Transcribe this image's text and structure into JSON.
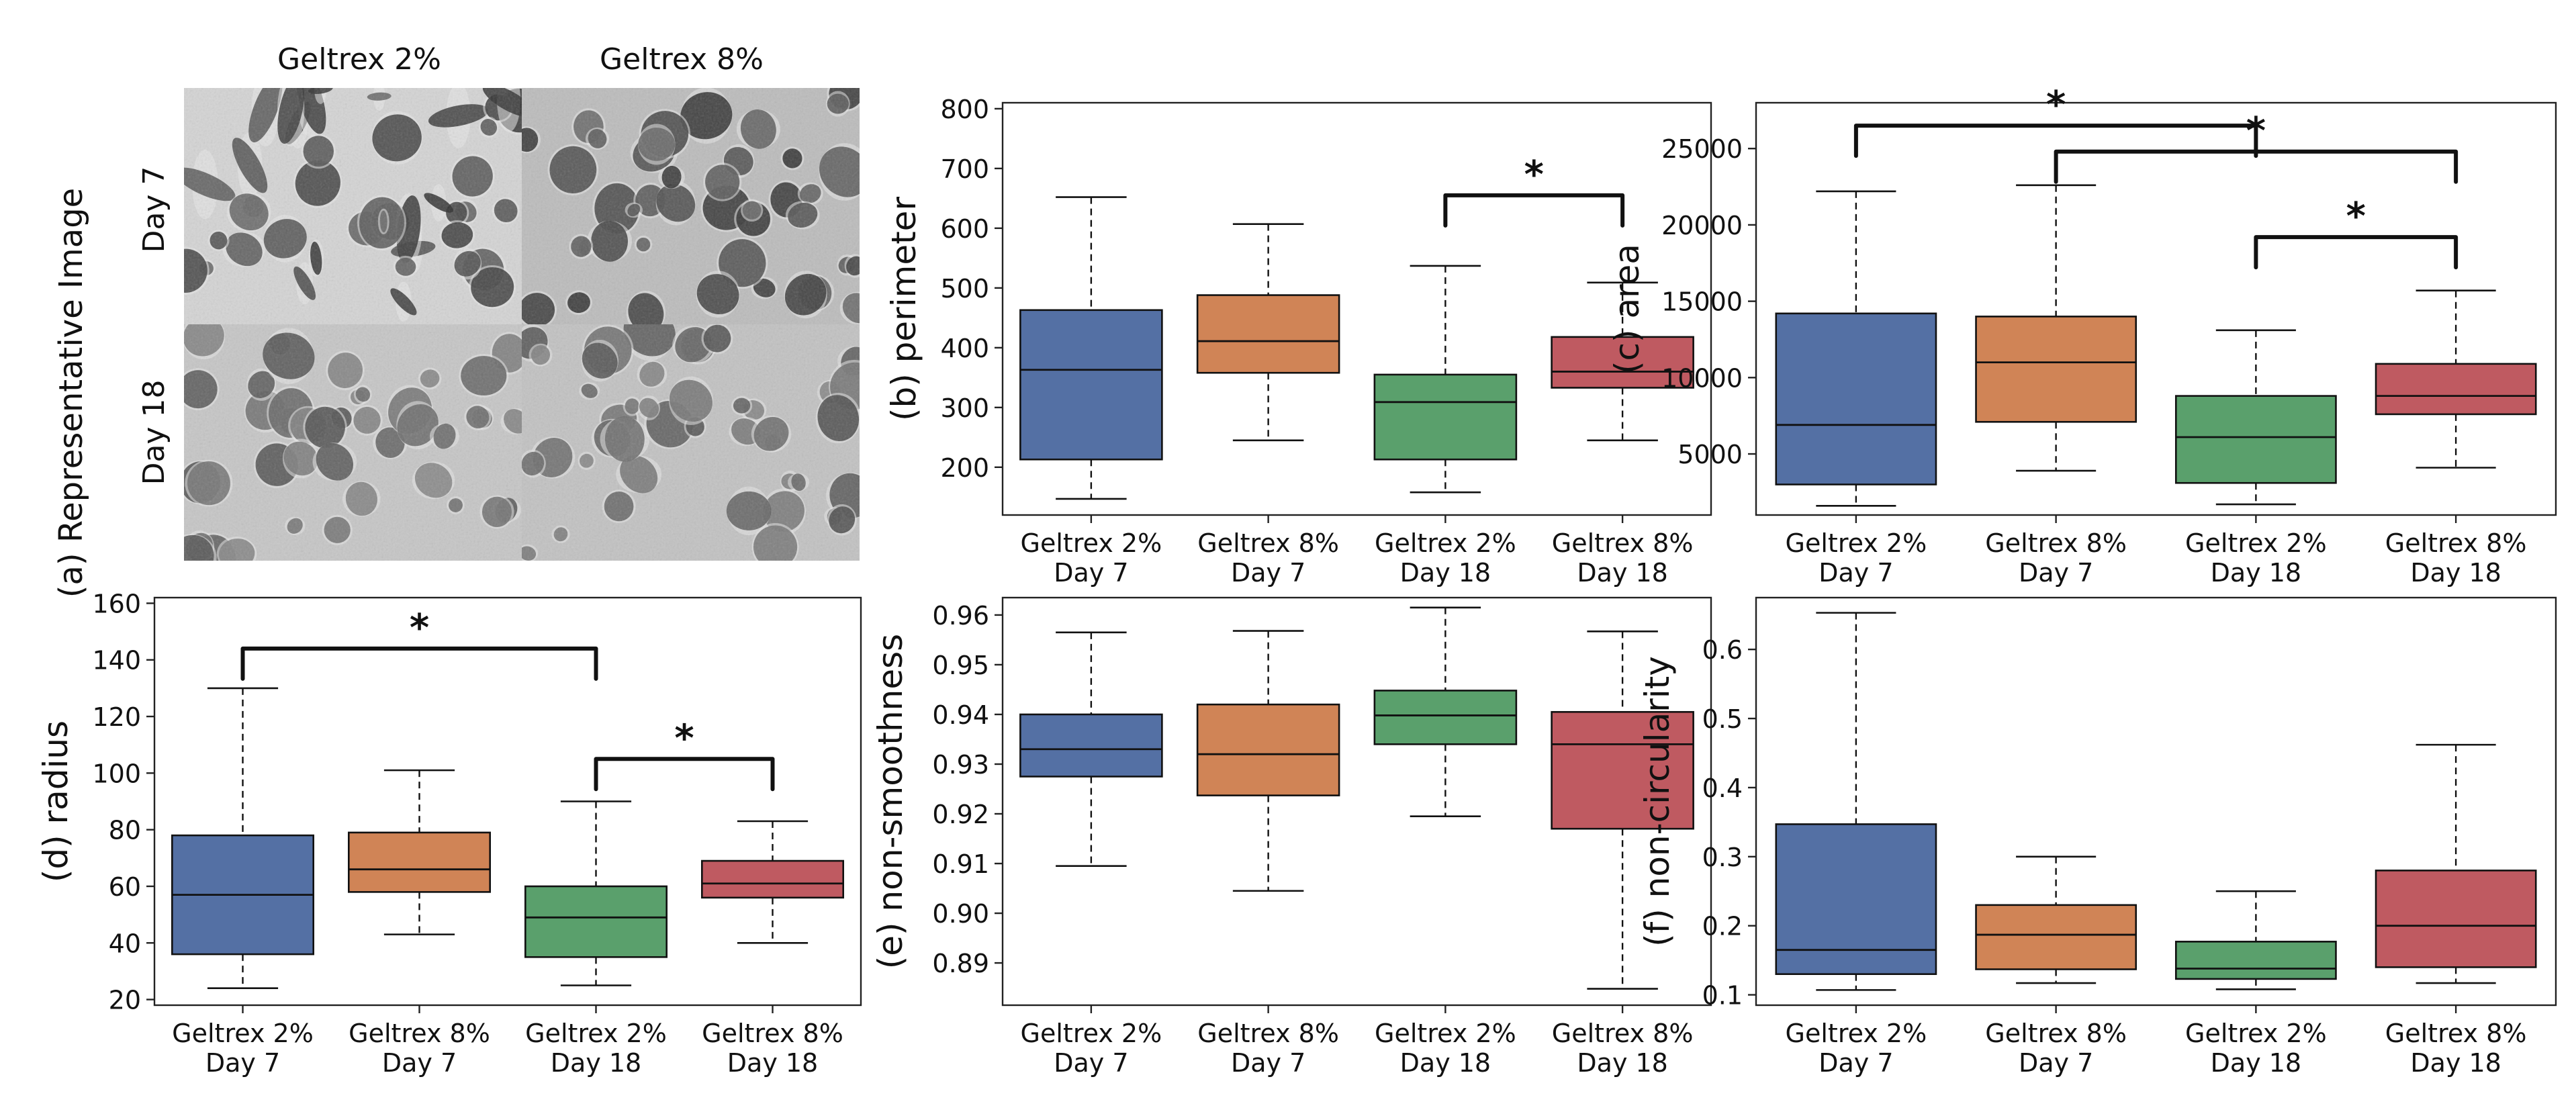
{
  "colors": {
    "blue": "#5470a4",
    "orange": "#d08456",
    "green": "#5aa06c",
    "red": "#bf5a61"
  },
  "panel_a": {
    "ylabel": "(a) Representative Image",
    "col_labels": [
      "Geltrex 2%",
      "Geltrex 8%"
    ],
    "row_labels": [
      "Day 7",
      "Day 18"
    ]
  },
  "chart_data": [
    {
      "id": "b",
      "type": "box",
      "ylabel": "(b) perimeter",
      "categories": [
        "Geltrex 2%\nDay 7",
        "Geltrex 8%\nDay 7",
        "Geltrex 2%\nDay 18",
        "Geltrex 8%\nDay 18"
      ],
      "ylim": [
        120,
        810
      ],
      "yticks": [
        200,
        300,
        400,
        500,
        600,
        700,
        800
      ],
      "boxes": [
        {
          "min": 147,
          "q1": 213,
          "median": 363,
          "q3": 463,
          "max": 652
        },
        {
          "min": 245,
          "q1": 358,
          "median": 411,
          "q3": 488,
          "max": 607
        },
        {
          "min": 158,
          "q1": 213,
          "median": 309,
          "q3": 355,
          "max": 537
        },
        {
          "min": 245,
          "q1": 333,
          "median": 360,
          "q3": 418,
          "max": 509
        }
      ],
      "significance": [
        {
          "from": 2,
          "to": 3,
          "y": 655,
          "label": "*"
        }
      ]
    },
    {
      "id": "c",
      "type": "box",
      "ylabel": "(c) area",
      "categories": [
        "Geltrex 2%\nDay 7",
        "Geltrex 8%\nDay 7",
        "Geltrex 2%\nDay 18",
        "Geltrex 8%\nDay 18"
      ],
      "ylim": [
        1000,
        28000
      ],
      "yticks": [
        5000,
        10000,
        15000,
        20000,
        25000
      ],
      "boxes": [
        {
          "min": 1600,
          "q1": 3000,
          "median": 6900,
          "q3": 14200,
          "max": 22200
        },
        {
          "min": 3900,
          "q1": 7100,
          "median": 11000,
          "q3": 14000,
          "max": 22600
        },
        {
          "min": 1700,
          "q1": 3100,
          "median": 6100,
          "q3": 8800,
          "max": 13100
        },
        {
          "min": 4100,
          "q1": 7600,
          "median": 8800,
          "q3": 10900,
          "max": 15700
        }
      ],
      "significance": [
        {
          "from": 0,
          "to": 2,
          "y": 26500,
          "label": "*"
        },
        {
          "from": 1,
          "to": 3,
          "y": 24800,
          "label": "*"
        },
        {
          "from": 2,
          "to": 3,
          "y": 19200,
          "label": "*"
        }
      ]
    },
    {
      "id": "d",
      "type": "box",
      "ylabel": "(d) radius",
      "categories": [
        "Geltrex 2%\nDay 7",
        "Geltrex 8%\nDay 7",
        "Geltrex 2%\nDay 18",
        "Geltrex 8%\nDay 18"
      ],
      "ylim": [
        18,
        162
      ],
      "yticks": [
        20,
        40,
        60,
        80,
        100,
        120,
        140,
        160
      ],
      "boxes": [
        {
          "min": 24,
          "q1": 36,
          "median": 57,
          "q3": 78,
          "max": 130
        },
        {
          "min": 43,
          "q1": 58,
          "median": 66,
          "q3": 79,
          "max": 101
        },
        {
          "min": 25,
          "q1": 35,
          "median": 49,
          "q3": 60,
          "max": 90
        },
        {
          "min": 40,
          "q1": 56,
          "median": 61,
          "q3": 69,
          "max": 83
        }
      ],
      "significance": [
        {
          "from": 0,
          "to": 2,
          "y": 144,
          "label": "*"
        },
        {
          "from": 2,
          "to": 3,
          "y": 105,
          "label": "*"
        }
      ]
    },
    {
      "id": "e",
      "type": "box",
      "ylabel": "(e) non-smoothness",
      "categories": [
        "Geltrex 2%\nDay 7",
        "Geltrex 8%\nDay 7",
        "Geltrex 2%\nDay 18",
        "Geltrex 8%\nDay 18"
      ],
      "ylim": [
        0.8815,
        0.9635
      ],
      "yticks": [
        0.89,
        0.9,
        0.91,
        0.92,
        0.93,
        0.94,
        0.95,
        0.96
      ],
      "tick_decimals": 2,
      "boxes": [
        {
          "min": 0.9095,
          "q1": 0.9275,
          "median": 0.933,
          "q3": 0.94,
          "max": 0.9565
        },
        {
          "min": 0.9045,
          "q1": 0.9237,
          "median": 0.932,
          "q3": 0.942,
          "max": 0.9568
        },
        {
          "min": 0.9195,
          "q1": 0.934,
          "median": 0.9398,
          "q3": 0.9448,
          "max": 0.9615
        },
        {
          "min": 0.8848,
          "q1": 0.917,
          "median": 0.934,
          "q3": 0.9405,
          "max": 0.9567
        }
      ],
      "significance": []
    },
    {
      "id": "f",
      "type": "box",
      "ylabel": "(f) non-circularity",
      "categories": [
        "Geltrex 2%\nDay 7",
        "Geltrex 8%\nDay 7",
        "Geltrex 2%\nDay 18",
        "Geltrex 8%\nDay 18"
      ],
      "ylim": [
        0.085,
        0.675
      ],
      "yticks": [
        0.1,
        0.2,
        0.3,
        0.4,
        0.5,
        0.6
      ],
      "tick_decimals": 1,
      "boxes": [
        {
          "min": 0.107,
          "q1": 0.13,
          "median": 0.165,
          "q3": 0.347,
          "max": 0.653
        },
        {
          "min": 0.117,
          "q1": 0.137,
          "median": 0.187,
          "q3": 0.23,
          "max": 0.3
        },
        {
          "min": 0.108,
          "q1": 0.123,
          "median": 0.138,
          "q3": 0.177,
          "max": 0.25
        },
        {
          "min": 0.117,
          "q1": 0.14,
          "median": 0.2,
          "q3": 0.28,
          "max": 0.462
        }
      ],
      "significance": []
    }
  ]
}
